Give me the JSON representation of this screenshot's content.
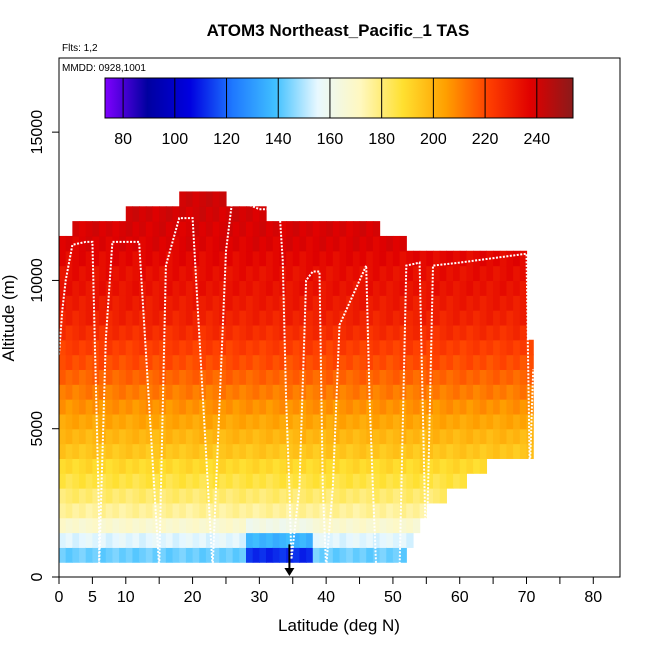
{
  "chart_data": {
    "type": "heatmap",
    "title": "ATOM3 Northeast_Pacific_1 TAS",
    "flights_label": "Flts: 1,2",
    "date_label": "MMDD: 0928,1001",
    "xlabel": "Latitude (deg N)",
    "ylabel": "Altitude (m)",
    "xlim": [
      0,
      84
    ],
    "ylim": [
      0,
      17500
    ],
    "x_ticks": [
      0,
      5,
      10,
      20,
      30,
      40,
      50,
      60,
      70,
      80
    ],
    "x_minor_ticks": [
      0,
      5,
      10,
      15,
      20,
      25,
      30,
      35,
      40,
      45,
      50,
      55,
      60,
      65,
      70,
      75,
      80,
      85
    ],
    "y_ticks": [
      0,
      5000,
      10000,
      15000
    ],
    "colorbar": {
      "min": 73,
      "max": 254,
      "ticks": [
        80,
        100,
        120,
        140,
        160,
        180,
        200,
        220,
        240
      ],
      "colors": [
        "#7f00ff",
        "#0000a0",
        "#0000e0",
        "#1e78ff",
        "#40c0ff",
        "#e8f8ff",
        "#fff8c0",
        "#ffe030",
        "#ffa000",
        "#ff4000",
        "#e00000",
        "#8b1a1a"
      ]
    },
    "tas_profile": {
      "altitudes_m": [
        250,
        750,
        1250,
        1750,
        2250,
        2750,
        3250,
        3750,
        4250,
        4750,
        5250,
        5750,
        6250,
        6750,
        7250,
        7750,
        8250,
        8750,
        9250,
        9750,
        10250,
        10750,
        11250,
        11750,
        12250,
        12750
      ],
      "tas_ms": [
        150,
        143,
        155,
        168,
        176,
        181,
        186,
        190,
        195,
        199,
        203,
        207,
        211,
        215,
        219,
        222,
        226,
        229,
        231,
        233,
        234,
        236,
        238,
        239,
        240,
        241
      ]
    },
    "coverage_top_m": [
      [
        0,
        11500
      ],
      [
        3,
        11900
      ],
      [
        9,
        12000
      ],
      [
        10,
        12400
      ],
      [
        15,
        12400
      ],
      [
        19,
        12900
      ],
      [
        25,
        12900
      ],
      [
        26,
        12500
      ],
      [
        30,
        12400
      ],
      [
        34,
        12000
      ],
      [
        38,
        12000
      ],
      [
        47,
        12000
      ],
      [
        50,
        11500
      ],
      [
        53,
        11200
      ],
      [
        64,
        11000
      ],
      [
        70,
        11000
      ],
      [
        70.5,
        8000
      ],
      [
        71,
        6500
      ],
      [
        71,
        4100
      ],
      [
        65,
        4100
      ],
      [
        63,
        3500
      ],
      [
        60,
        3000
      ],
      [
        56,
        2500
      ],
      [
        54,
        1700
      ],
      [
        53,
        1000
      ],
      [
        52,
        700
      ],
      [
        50,
        700
      ],
      [
        50,
        300
      ],
      [
        0,
        300
      ]
    ],
    "flight_track": [
      [
        0,
        7500
      ],
      [
        0.5,
        9000
      ],
      [
        1,
        10000
      ],
      [
        2,
        11200
      ],
      [
        4,
        11300
      ],
      [
        5,
        11300
      ],
      [
        6,
        2000
      ],
      [
        6,
        300
      ],
      [
        7,
        8000
      ],
      [
        8,
        11300
      ],
      [
        12,
        11300
      ],
      [
        15,
        300
      ],
      [
        16,
        10500
      ],
      [
        18,
        12100
      ],
      [
        20,
        12100
      ],
      [
        23,
        300
      ],
      [
        25,
        11000
      ],
      [
        26,
        12800
      ],
      [
        30,
        12400
      ],
      [
        33,
        12400
      ],
      [
        33.5,
        10700
      ],
      [
        34,
        6000
      ],
      [
        34.5,
        3000
      ],
      [
        34.8,
        600
      ],
      [
        36,
        3000
      ],
      [
        37,
        10000
      ],
      [
        38,
        10300
      ],
      [
        39,
        10300
      ],
      [
        39.5,
        3000
      ],
      [
        40,
        300
      ],
      [
        41,
        3000
      ],
      [
        42,
        8500
      ],
      [
        44,
        9500
      ],
      [
        46,
        10500
      ],
      [
        46.5,
        6000
      ],
      [
        47,
        3000
      ],
      [
        47.5,
        300
      ],
      [
        51,
        300
      ],
      [
        52,
        10500
      ],
      [
        54,
        10600
      ],
      [
        55,
        300
      ],
      [
        56,
        10500
      ],
      [
        60,
        10600
      ],
      [
        70,
        10900
      ],
      [
        70.5,
        3500
      ],
      [
        71,
        7000
      ]
    ],
    "landing_marker_lat": 34.5
  }
}
